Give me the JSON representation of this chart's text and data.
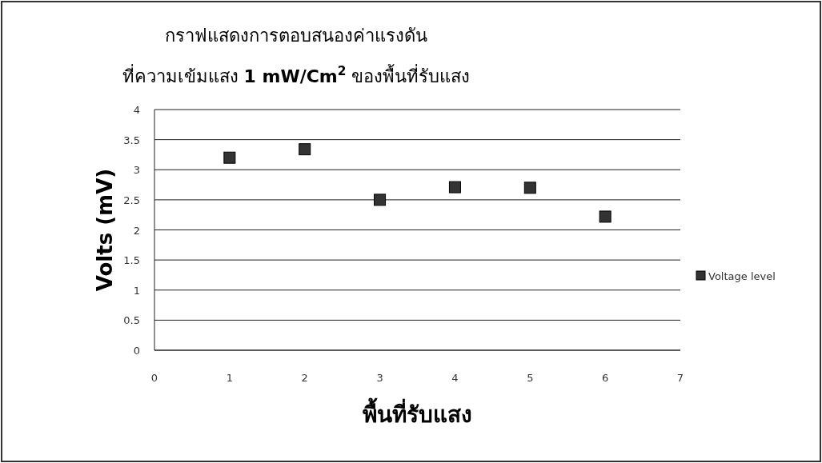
{
  "chart_data": {
    "type": "scatter",
    "title": "กราฟแสดงการตอบสนองค่าแรงดัน",
    "subtitle": "ที่ความเข้มแสง **1 mW/Cm$^{2}$** ของพื้นที่รับแสง",
    "xlabel": "พื้นที่รับแสง",
    "ylabel": "Volts (mV)",
    "x": [
      1,
      2,
      3,
      4,
      5,
      6
    ],
    "series": [
      {
        "name": "Voltage level",
        "color": "#333333",
        "values": [
          3.2,
          3.34,
          2.5,
          2.71,
          2.7,
          2.22
        ]
      }
    ],
    "xlim": [
      0,
      7
    ],
    "xticks": [
      0,
      1,
      2,
      3,
      4,
      5,
      6,
      7
    ],
    "ylim": [
      0,
      4
    ],
    "yticks": [
      0,
      0.5,
      1,
      1.5,
      2,
      2.5,
      3,
      3.5,
      4
    ],
    "grid": "y",
    "legend": "right",
    "marker": "square"
  }
}
